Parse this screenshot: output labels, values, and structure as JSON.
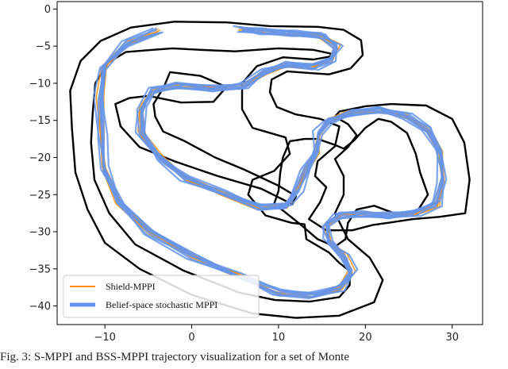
{
  "caption": "Fig. 3: S-MPPI and BSS-MPPI trajectory visualization for a set of Monte",
  "chart_data": {
    "type": "line",
    "title": "",
    "xlabel": "",
    "ylabel": "",
    "xlim": [
      -15.5,
      33.5
    ],
    "ylim": [
      -42.5,
      1
    ],
    "xticks": [
      -10,
      0,
      10,
      20,
      30
    ],
    "yticks": [
      0,
      -5,
      -10,
      -15,
      -20,
      -25,
      -30,
      -35,
      -40
    ],
    "grid": false,
    "legend_position": "lower-left",
    "colors": {
      "track": "#000000",
      "shield": "#ff8c00",
      "belief": "#6495ed"
    },
    "track_outer": [
      [
        4,
        -1.8
      ],
      [
        9,
        -2.3
      ],
      [
        14.5,
        -2.4
      ],
      [
        17.5,
        -2.8
      ],
      [
        19.5,
        -4.2
      ],
      [
        19.7,
        -6.2
      ],
      [
        18.3,
        -8
      ],
      [
        15.8,
        -8.8
      ],
      [
        13.3,
        -8.6
      ],
      [
        11,
        -8.4
      ],
      [
        9.2,
        -9.5
      ],
      [
        9,
        -11.2
      ],
      [
        9.8,
        -13.2
      ],
      [
        12,
        -14.2
      ],
      [
        14.8,
        -14.8
      ],
      [
        17,
        -15.8
      ],
      [
        16.5,
        -18.5
      ],
      [
        14.5,
        -20.5
      ],
      [
        14.2,
        -22.5
      ],
      [
        15.5,
        -24
      ],
      [
        14.8,
        -26
      ],
      [
        13.5,
        -28.3
      ],
      [
        15.5,
        -29.8
      ],
      [
        18.5,
        -29.8
      ],
      [
        20.8,
        -29.1
      ],
      [
        22.6,
        -28.8
      ],
      [
        25.5,
        -28.3
      ],
      [
        28.5,
        -28
      ],
      [
        31.5,
        -27.5
      ],
      [
        32,
        -23
      ],
      [
        31.4,
        -18
      ],
      [
        30,
        -14.8
      ],
      [
        27,
        -13
      ],
      [
        23,
        -12.8
      ],
      [
        20,
        -13.1
      ],
      [
        17,
        -13.8
      ],
      [
        16.5,
        -14.5
      ],
      [
        18,
        -15.5
      ],
      [
        19,
        -17
      ],
      [
        18,
        -18.6
      ],
      [
        16.5,
        -20.2
      ],
      [
        17.5,
        -22.5
      ],
      [
        17.5,
        -25
      ],
      [
        16.5,
        -27.5
      ],
      [
        18,
        -31
      ],
      [
        20.5,
        -33.5
      ],
      [
        22,
        -36.5
      ],
      [
        21,
        -39.5
      ],
      [
        17,
        -41.3
      ],
      [
        12,
        -41.6
      ],
      [
        7,
        -41
      ],
      [
        0,
        -38.5
      ],
      [
        -6,
        -35
      ],
      [
        -10,
        -31.5
      ],
      [
        -12,
        -27
      ],
      [
        -13.4,
        -22
      ],
      [
        -13.8,
        -16
      ],
      [
        -14,
        -11
      ],
      [
        -12.8,
        -7
      ],
      [
        -10.5,
        -4.3
      ],
      [
        -7,
        -2.5
      ],
      [
        -2,
        -1.7
      ],
      [
        4,
        -1.8
      ]
    ],
    "track_inner": [
      [
        1,
        -5.5
      ],
      [
        5,
        -5.7
      ],
      [
        10,
        -5.3
      ],
      [
        14,
        -5.5
      ],
      [
        16,
        -6
      ],
      [
        16,
        -6.4
      ],
      [
        14,
        -6.8
      ],
      [
        10.5,
        -6.5
      ],
      [
        7.5,
        -7.7
      ],
      [
        5.8,
        -10
      ],
      [
        5.8,
        -13.5
      ],
      [
        7,
        -16
      ],
      [
        10.8,
        -17.3
      ],
      [
        11.3,
        -19.5
      ],
      [
        9.5,
        -21.8
      ],
      [
        7,
        -23
      ],
      [
        6.5,
        -25
      ],
      [
        8.5,
        -27.8
      ],
      [
        11.5,
        -28.8
      ],
      [
        13,
        -29
      ],
      [
        13.2,
        -31
      ],
      [
        15.8,
        -32.8
      ],
      [
        17,
        -34.2
      ],
      [
        18.2,
        -35.3
      ],
      [
        18.2,
        -37.2
      ],
      [
        17,
        -38.8
      ],
      [
        13.6,
        -39.4
      ],
      [
        9.6,
        -39.2
      ],
      [
        5.5,
        -38.2
      ],
      [
        -1,
        -35.2
      ],
      [
        -6.5,
        -31.7
      ],
      [
        -9.5,
        -27.5
      ],
      [
        -11.2,
        -23
      ],
      [
        -11.6,
        -18
      ],
      [
        -11.4,
        -14
      ],
      [
        -11.1,
        -10
      ],
      [
        -9.6,
        -7.2
      ],
      [
        -7.6,
        -5.8
      ],
      [
        -4.5,
        -5.5
      ],
      [
        -2.2,
        -5.3
      ],
      [
        1,
        -5.5
      ]
    ],
    "track_inner_loop": [
      [
        -2.5,
        -8.5
      ],
      [
        1,
        -9
      ],
      [
        4,
        -10.5
      ],
      [
        2.5,
        -12.5
      ],
      [
        -1.2,
        -12.6
      ],
      [
        -5,
        -11.7
      ],
      [
        -7.2,
        -12
      ],
      [
        -8.8,
        -12.8
      ],
      [
        -8.2,
        -15.8
      ],
      [
        -6,
        -18.6
      ],
      [
        -2,
        -20.5
      ],
      [
        3,
        -22.5
      ],
      [
        8,
        -24.2
      ],
      [
        11.6,
        -26.3
      ],
      [
        12,
        -25.2
      ],
      [
        10,
        -23.8
      ],
      [
        6,
        -21.6
      ],
      [
        2.7,
        -20
      ],
      [
        -0.8,
        -17.8
      ],
      [
        -3.3,
        -16.5
      ],
      [
        -4.2,
        -14.5
      ],
      [
        -4.4,
        -12.8
      ],
      [
        -3.2,
        -10.5
      ],
      [
        -2.5,
        -8.5
      ]
    ],
    "track_right_loop": [
      [
        9.5,
        -26.2
      ],
      [
        10,
        -24.5
      ],
      [
        10.2,
        -22
      ],
      [
        10.5,
        -20
      ],
      [
        11.3,
        -17.8
      ],
      [
        13,
        -17.5
      ],
      [
        14.5,
        -17.5
      ],
      [
        16.5,
        -18.3
      ],
      [
        17.5,
        -18.8
      ],
      [
        18.7,
        -17.7
      ],
      [
        20,
        -16
      ],
      [
        21.5,
        -14.8
      ],
      [
        23,
        -15.2
      ],
      [
        24.8,
        -16.7
      ],
      [
        25.8,
        -19.5
      ],
      [
        26.3,
        -22
      ],
      [
        27.2,
        -25
      ],
      [
        26,
        -27.2
      ],
      [
        24,
        -27.8
      ],
      [
        21,
        -26.5
      ],
      [
        19,
        -27
      ],
      [
        18,
        -28.8
      ],
      [
        17.7,
        -31
      ],
      [
        16.5,
        -32
      ],
      [
        14.5,
        -31
      ],
      [
        12.5,
        -29
      ],
      [
        9.5,
        -26.2
      ]
    ],
    "series": [
      {
        "name": "Shield-MPPI",
        "centerline": [
          [
            -4.0,
            -3.0
          ],
          [
            -7.5,
            -4.6
          ],
          [
            -10.2,
            -7.8
          ],
          [
            -10.6,
            -12.0
          ],
          [
            -10.3,
            -17.0
          ],
          [
            -10.0,
            -21.5
          ],
          [
            -8.3,
            -26.0
          ],
          [
            -5.0,
            -30.0
          ],
          [
            0.0,
            -33.3
          ],
          [
            5.5,
            -36.0
          ],
          [
            10.0,
            -38.2
          ],
          [
            14.0,
            -38.6
          ],
          [
            17.2,
            -37.6
          ],
          [
            18.5,
            -35.5
          ],
          [
            17.5,
            -33.2
          ],
          [
            15.7,
            -31.3
          ],
          [
            15.4,
            -29.1
          ],
          [
            17.0,
            -27.8
          ],
          [
            20.0,
            -27.6
          ],
          [
            22.8,
            -27.8
          ],
          [
            25.8,
            -27.5
          ],
          [
            28.2,
            -26.3
          ],
          [
            28.8,
            -23.0
          ],
          [
            28.5,
            -19.3
          ],
          [
            27.2,
            -16.3
          ],
          [
            24.8,
            -14.4
          ],
          [
            21.8,
            -13.6
          ],
          [
            18.5,
            -14.0
          ],
          [
            15.8,
            -15.0
          ],
          [
            14.5,
            -16.8
          ],
          [
            14.3,
            -19.2
          ],
          [
            13.2,
            -21.6
          ],
          [
            12.3,
            -24.2
          ],
          [
            11.0,
            -26.5
          ],
          [
            8.0,
            -26.7
          ],
          [
            3.5,
            -24.8
          ],
          [
            -0.8,
            -22.8
          ],
          [
            -3.8,
            -20.0
          ],
          [
            -5.8,
            -16.8
          ],
          [
            -5.8,
            -13.6
          ],
          [
            -4.5,
            -11.0
          ],
          [
            -1.5,
            -10.3
          ],
          [
            2.5,
            -10.7
          ],
          [
            6.0,
            -10.3
          ],
          [
            8.2,
            -8.5
          ],
          [
            11.0,
            -7.5
          ],
          [
            14.0,
            -7.8
          ],
          [
            16.2,
            -6.8
          ],
          [
            16.8,
            -5.0
          ],
          [
            15.0,
            -3.6
          ],
          [
            11.5,
            -3.3
          ],
          [
            8.0,
            -3.0
          ],
          [
            5.5,
            -2.7
          ]
        ],
        "runs": 6
      },
      {
        "name": "Belief-space stochastic MPPI",
        "centerline": [
          [
            -4.0,
            -3.0
          ],
          [
            -7.5,
            -4.6
          ],
          [
            -10.2,
            -7.8
          ],
          [
            -10.6,
            -12.0
          ],
          [
            -10.3,
            -17.0
          ],
          [
            -10.0,
            -21.5
          ],
          [
            -8.3,
            -26.0
          ],
          [
            -5.0,
            -30.0
          ],
          [
            0.0,
            -33.3
          ],
          [
            5.5,
            -36.0
          ],
          [
            10.0,
            -38.2
          ],
          [
            14.0,
            -38.6
          ],
          [
            17.2,
            -37.6
          ],
          [
            18.5,
            -35.5
          ],
          [
            17.5,
            -33.2
          ],
          [
            15.7,
            -31.3
          ],
          [
            15.4,
            -29.1
          ],
          [
            17.0,
            -27.8
          ],
          [
            20.0,
            -27.6
          ],
          [
            22.8,
            -27.8
          ],
          [
            25.8,
            -27.5
          ],
          [
            28.2,
            -26.3
          ],
          [
            28.8,
            -23.0
          ],
          [
            28.5,
            -19.3
          ],
          [
            27.2,
            -16.3
          ],
          [
            24.8,
            -14.4
          ],
          [
            21.8,
            -13.6
          ],
          [
            18.5,
            -14.0
          ],
          [
            15.8,
            -15.0
          ],
          [
            14.5,
            -16.8
          ],
          [
            14.3,
            -19.2
          ],
          [
            13.2,
            -21.6
          ],
          [
            12.3,
            -24.2
          ],
          [
            11.0,
            -26.5
          ],
          [
            8.0,
            -26.7
          ],
          [
            3.5,
            -24.8
          ],
          [
            -0.8,
            -22.8
          ],
          [
            -3.8,
            -20.0
          ],
          [
            -5.8,
            -16.8
          ],
          [
            -5.8,
            -13.6
          ],
          [
            -4.5,
            -11.0
          ],
          [
            -1.5,
            -10.3
          ],
          [
            2.5,
            -10.7
          ],
          [
            6.0,
            -10.3
          ],
          [
            8.2,
            -8.5
          ],
          [
            11.0,
            -7.5
          ],
          [
            14.0,
            -7.8
          ],
          [
            16.2,
            -6.8
          ],
          [
            16.8,
            -5.0
          ],
          [
            15.0,
            -3.6
          ],
          [
            11.5,
            -3.3
          ],
          [
            8.0,
            -3.0
          ],
          [
            5.5,
            -2.7
          ]
        ],
        "runs": 7
      }
    ]
  }
}
